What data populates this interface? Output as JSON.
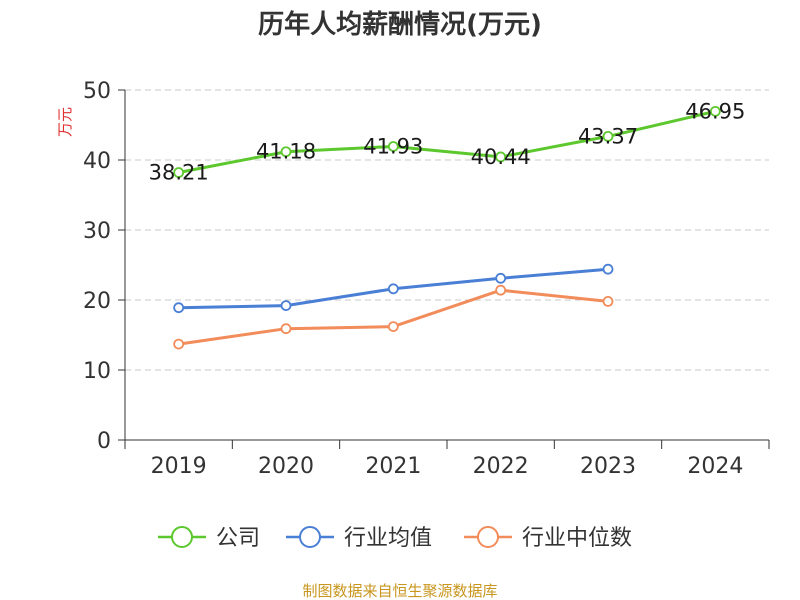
{
  "chart_data": {
    "type": "line",
    "title": "历年人均薪酬情况(万元)",
    "ylabel": "万元",
    "xlabel": "",
    "categories": [
      "2019",
      "2020",
      "2021",
      "2022",
      "2023",
      "2024"
    ],
    "ylim": [
      0,
      50
    ],
    "yticks": [
      0,
      10,
      20,
      30,
      40,
      50
    ],
    "grid": true,
    "legend_position": "bottom",
    "series": [
      {
        "name": "公司",
        "color": "#5cc82e",
        "values": [
          38.21,
          41.18,
          41.93,
          40.44,
          43.37,
          46.95
        ],
        "labels": [
          "38.21",
          "41.18",
          "41.93",
          "40.44",
          "43.37",
          "46.95"
        ]
      },
      {
        "name": "行业均值",
        "color": "#4a7fd6",
        "values": [
          18.9,
          19.2,
          21.6,
          23.1,
          24.4,
          null
        ]
      },
      {
        "name": "行业中位数",
        "color": "#f28c5a",
        "values": [
          13.7,
          15.9,
          16.2,
          21.4,
          19.8,
          null
        ]
      }
    ]
  },
  "source": "制图数据来自恒生聚源数据库"
}
